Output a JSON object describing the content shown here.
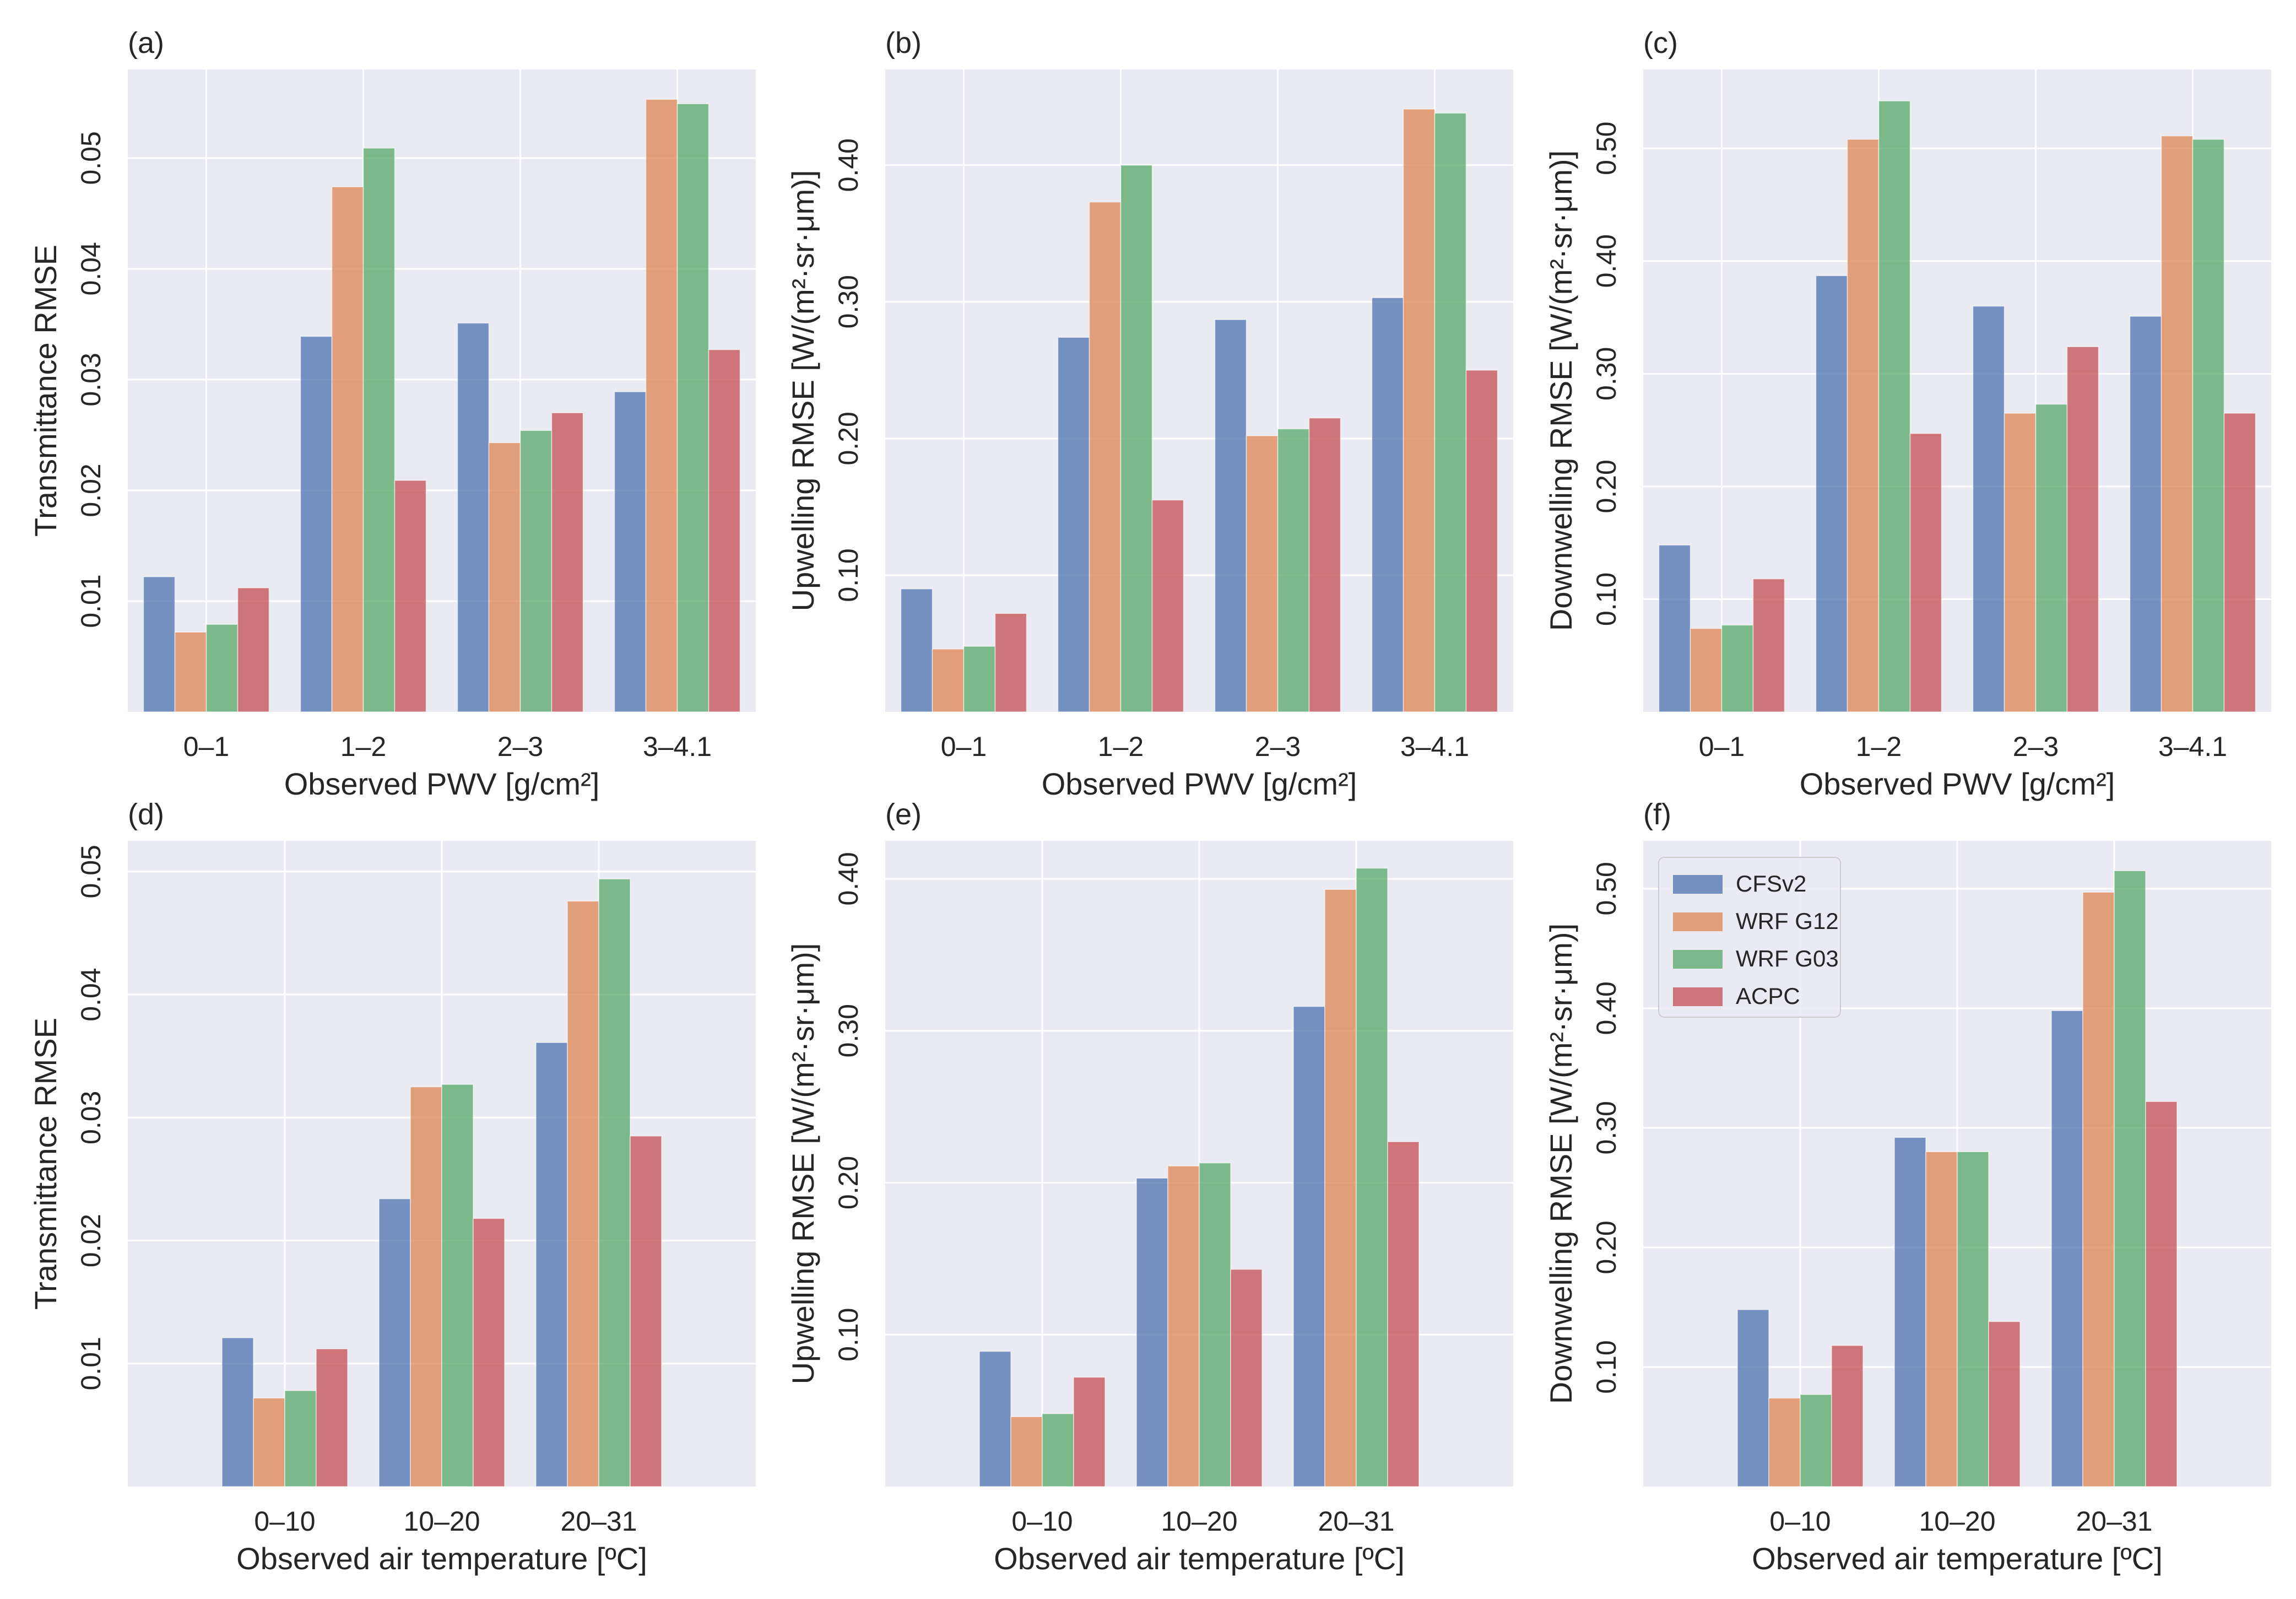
{
  "figure": {
    "legend": [
      {
        "name": "CFSv2",
        "color": "#4c72b0"
      },
      {
        "name": "WRF G12",
        "color": "#dd8452"
      },
      {
        "name": "WRF G03",
        "color": "#55a868"
      },
      {
        "name": "ACPC",
        "color": "#c44e52"
      }
    ],
    "style": {
      "plot_bg": "#eaeaf2",
      "grid": "#ffffff",
      "bar_alpha": 0.75
    }
  },
  "chart_data": [
    {
      "panel": "(a)",
      "type": "bar",
      "title": "",
      "xlabel": "Observed PWV [g/cm²]",
      "ylabel": "Transmittance RMSE",
      "categories": [
        "0–1",
        "1–2",
        "2–3",
        "3–4.1"
      ],
      "slots": 4,
      "ylim": [
        0.0,
        0.058
      ],
      "yticks": [
        0.01,
        0.02,
        0.03,
        0.04,
        0.05
      ],
      "yticklabels": [
        "0.01",
        "0.02",
        "0.03",
        "0.04",
        "0.05"
      ],
      "series": [
        {
          "name": "CFSv2",
          "values": [
            0.0122,
            0.0339,
            0.0351,
            0.0289
          ]
        },
        {
          "name": "WRF G12",
          "values": [
            0.0072,
            0.0474,
            0.0243,
            0.0553
          ]
        },
        {
          "name": "WRF G03",
          "values": [
            0.0079,
            0.0509,
            0.0254,
            0.0549
          ]
        },
        {
          "name": "ACPC",
          "values": [
            0.0112,
            0.0209,
            0.027,
            0.0327
          ]
        }
      ]
    },
    {
      "panel": "(b)",
      "type": "bar",
      "title": "",
      "xlabel": "Observed PWV [g/cm²]",
      "ylabel": "Upwelling RMSE [W/(m²·sr·μm)]",
      "categories": [
        "0–1",
        "1–2",
        "2–3",
        "3–4.1"
      ],
      "slots": 4,
      "ylim": [
        0.0,
        0.47
      ],
      "yticks": [
        0.1,
        0.2,
        0.3,
        0.4
      ],
      "yticklabels": [
        "0.10",
        "0.20",
        "0.30",
        "0.40"
      ],
      "series": [
        {
          "name": "CFSv2",
          "values": [
            0.09,
            0.274,
            0.287,
            0.303
          ]
        },
        {
          "name": "WRF G12",
          "values": [
            0.046,
            0.373,
            0.202,
            0.441
          ]
        },
        {
          "name": "WRF G03",
          "values": [
            0.048,
            0.4,
            0.207,
            0.438
          ]
        },
        {
          "name": "ACPC",
          "values": [
            0.072,
            0.155,
            0.215,
            0.25
          ]
        }
      ]
    },
    {
      "panel": "(c)",
      "type": "bar",
      "title": "",
      "xlabel": "Observed PWV [g/cm²]",
      "ylabel": "Downwelling RMSE [W/(m²·sr·μm)]",
      "categories": [
        "0–1",
        "1–2",
        "2–3",
        "3–4.1"
      ],
      "slots": 4,
      "ylim": [
        0.0,
        0.57
      ],
      "yticks": [
        0.1,
        0.2,
        0.3,
        0.4,
        0.5
      ],
      "yticklabels": [
        "0.10",
        "0.20",
        "0.30",
        "0.40",
        "0.50"
      ],
      "series": [
        {
          "name": "CFSv2",
          "values": [
            0.148,
            0.387,
            0.36,
            0.351
          ]
        },
        {
          "name": "WRF G12",
          "values": [
            0.074,
            0.508,
            0.265,
            0.511
          ]
        },
        {
          "name": "WRF G03",
          "values": [
            0.077,
            0.542,
            0.273,
            0.508
          ]
        },
        {
          "name": "ACPC",
          "values": [
            0.118,
            0.247,
            0.324,
            0.265
          ]
        }
      ]
    },
    {
      "panel": "(d)",
      "type": "bar",
      "title": "",
      "xlabel": "Observed air temperature [ºC]",
      "ylabel": "Transmittance RMSE",
      "categories": [
        "0–10",
        "10–20",
        "20–31"
      ],
      "slots": 4,
      "ylim": [
        0.0,
        0.0525
      ],
      "yticks": [
        0.01,
        0.02,
        0.03,
        0.04,
        0.05
      ],
      "yticklabels": [
        "0.01",
        "0.02",
        "0.03",
        "0.04",
        "0.05"
      ],
      "series": [
        {
          "name": "CFSv2",
          "values": [
            0.0121,
            0.0234,
            0.0361
          ]
        },
        {
          "name": "WRF G12",
          "values": [
            0.0072,
            0.0325,
            0.0476
          ]
        },
        {
          "name": "WRF G03",
          "values": [
            0.0078,
            0.0327,
            0.0494
          ]
        },
        {
          "name": "ACPC",
          "values": [
            0.0112,
            0.0218,
            0.0285
          ]
        }
      ]
    },
    {
      "panel": "(e)",
      "type": "bar",
      "title": "",
      "xlabel": "Observed air temperature [ºC]",
      "ylabel": "Upwelling RMSE [W/(m²·sr·μm)]",
      "categories": [
        "0–10",
        "10–20",
        "20–31"
      ],
      "slots": 4,
      "ylim": [
        0.0,
        0.425
      ],
      "yticks": [
        0.1,
        0.2,
        0.3,
        0.4
      ],
      "yticklabels": [
        "0.10",
        "0.20",
        "0.30",
        "0.40"
      ],
      "series": [
        {
          "name": "CFSv2",
          "values": [
            0.089,
            0.203,
            0.316
          ]
        },
        {
          "name": "WRF G12",
          "values": [
            0.046,
            0.211,
            0.393
          ]
        },
        {
          "name": "WRF G03",
          "values": [
            0.048,
            0.213,
            0.407
          ]
        },
        {
          "name": "ACPC",
          "values": [
            0.072,
            0.143,
            0.227
          ]
        }
      ]
    },
    {
      "panel": "(f)",
      "type": "bar",
      "title": "",
      "xlabel": "Observed air temperature [ºC]",
      "ylabel": "Downwelling RMSE [W/(m²·sr·μm)]",
      "categories": [
        "0–10",
        "10–20",
        "20–31"
      ],
      "slots": 4,
      "ylim": [
        0.0,
        0.54
      ],
      "yticks": [
        0.1,
        0.2,
        0.3,
        0.4,
        0.5
      ],
      "yticklabels": [
        "0.10",
        "0.20",
        "0.30",
        "0.40",
        "0.50"
      ],
      "legend": "top-left",
      "series": [
        {
          "name": "CFSv2",
          "values": [
            0.148,
            0.292,
            0.398
          ]
        },
        {
          "name": "WRF G12",
          "values": [
            0.074,
            0.28,
            0.497
          ]
        },
        {
          "name": "WRF G03",
          "values": [
            0.077,
            0.28,
            0.515
          ]
        },
        {
          "name": "ACPC",
          "values": [
            0.118,
            0.138,
            0.322
          ]
        }
      ]
    }
  ]
}
